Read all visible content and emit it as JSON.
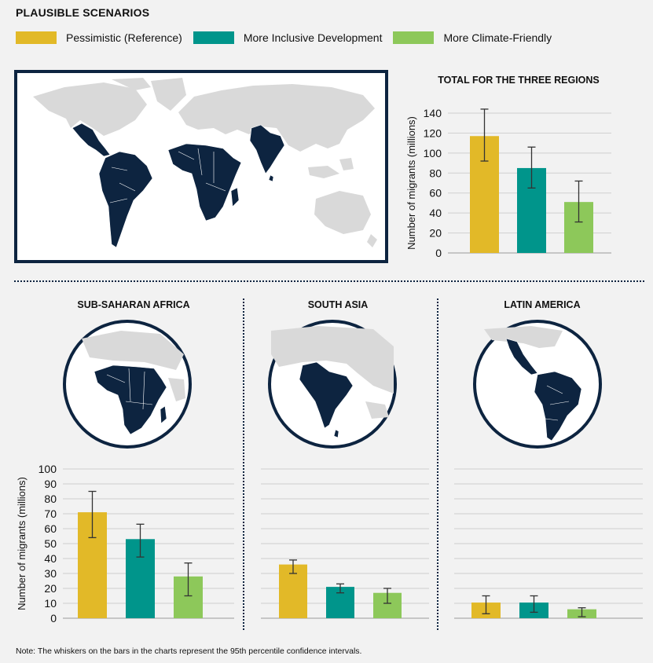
{
  "header": {
    "title": "PLAUSIBLE SCENARIOS"
  },
  "legend": [
    {
      "label": "Pessimistic (Reference)",
      "color": "#e2b928"
    },
    {
      "label": "More Inclusive Development",
      "color": "#00958b"
    },
    {
      "label": "More Climate-Friendly",
      "color": "#8dc85a"
    }
  ],
  "regions": {
    "africa": "SUB-SAHARAN AFRICA",
    "south_asia": "SOUTH ASIA",
    "latin_america": "LATIN AMERICA"
  },
  "note": "Note: The whiskers on the bars in the charts represent the 95th percentile confidence intervals.",
  "chart_data": [
    {
      "type": "bar",
      "title": "TOTAL FOR THE THREE REGIONS",
      "ylabel": "Number of migrants (millions)",
      "categories": [
        "Pessimistic (Reference)",
        "More Inclusive Development",
        "More Climate-Friendly"
      ],
      "values": [
        117,
        85,
        51
      ],
      "error_low": [
        92,
        65,
        31
      ],
      "error_high": [
        144,
        106,
        72
      ],
      "ylim": [
        0,
        140
      ],
      "yticks": [
        0,
        20,
        40,
        60,
        80,
        100,
        120,
        140
      ],
      "grid": true
    },
    {
      "type": "bar",
      "title": "SUB-SAHARAN AFRICA",
      "ylabel": "Number of migrants (millions)",
      "categories": [
        "Pessimistic (Reference)",
        "More Inclusive Development",
        "More Climate-Friendly"
      ],
      "values": [
        71,
        53,
        28
      ],
      "error_low": [
        54,
        41,
        15
      ],
      "error_high": [
        85,
        63,
        37
      ],
      "ylim": [
        0,
        100
      ],
      "yticks": [
        0,
        10,
        20,
        30,
        40,
        50,
        60,
        70,
        80,
        90,
        100
      ],
      "grid": true
    },
    {
      "type": "bar",
      "title": "SOUTH ASIA",
      "categories": [
        "Pessimistic (Reference)",
        "More Inclusive Development",
        "More Climate-Friendly"
      ],
      "values": [
        36,
        21,
        17
      ],
      "error_low": [
        30,
        17,
        10
      ],
      "error_high": [
        39,
        23,
        20
      ],
      "ylim": [
        0,
        100
      ],
      "grid": true
    },
    {
      "type": "bar",
      "title": "LATIN AMERICA",
      "categories": [
        "Pessimistic (Reference)",
        "More Inclusive Development",
        "More Climate-Friendly"
      ],
      "values": [
        10.5,
        10.5,
        6
      ],
      "error_low": [
        3,
        4,
        1
      ],
      "error_high": [
        15,
        15,
        7
      ],
      "ylim": [
        0,
        100
      ],
      "grid": true
    }
  ]
}
